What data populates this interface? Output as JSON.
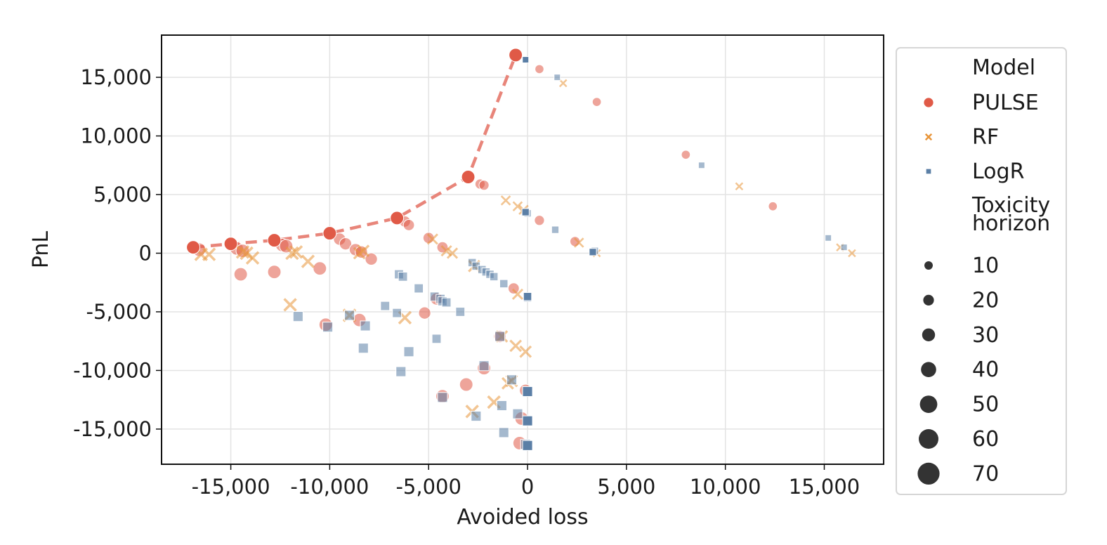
{
  "chart_data": {
    "type": "scatter",
    "xlabel": "Avoided loss",
    "ylabel": "PnL",
    "xlim": [
      -18500,
      18000
    ],
    "ylim": [
      -18000,
      18600
    ],
    "xticks": [
      -15000,
      -10000,
      -5000,
      0,
      5000,
      10000,
      15000
    ],
    "xtick_labels": [
      "-15,000",
      "-10,000",
      "-5,000",
      "0",
      "5,000",
      "10,000",
      "15,000"
    ],
    "yticks": [
      -15000,
      -10000,
      -5000,
      0,
      5000,
      10000,
      15000
    ],
    "ytick_labels": [
      "-15,000",
      "-10,000",
      "-5,000",
      "0",
      "5,000",
      "10,000",
      "15,000"
    ],
    "grid": true,
    "legend": {
      "placement": "outside-right",
      "model_title": "Model",
      "size_title": "Toxicity horizon",
      "size_title_lines": [
        "Toxicity",
        "horizon"
      ],
      "size_levels": [
        "10",
        "20",
        "30",
        "40",
        "50",
        "60",
        "70"
      ]
    },
    "colors": {
      "PULSE": "#e05a47",
      "RF": "#e8953a",
      "LogR": "#5b7fa6",
      "frontier": "#e8857a"
    },
    "series": [
      {
        "name": "PULSE",
        "marker": "circle",
        "frontier": [
          [
            -16900,
            500
          ],
          [
            -15000,
            800
          ],
          [
            -12800,
            1100
          ],
          [
            -10000,
            1700
          ],
          [
            -6600,
            3000
          ],
          [
            -3000,
            6500
          ],
          [
            -600,
            16900
          ]
        ],
        "points": [
          [
            -600,
            16900,
            70,
            1
          ],
          [
            600,
            15700,
            30,
            0.55
          ],
          [
            3500,
            12900,
            30,
            0.55
          ],
          [
            8000,
            8400,
            30,
            0.55
          ],
          [
            12400,
            4000,
            30,
            0.55
          ],
          [
            -3000,
            6500,
            70,
            1
          ],
          [
            -2400,
            5900,
            40,
            0.55
          ],
          [
            -2200,
            5800,
            40,
            0.55
          ],
          [
            600,
            2800,
            40,
            0.55
          ],
          [
            -6600,
            3000,
            70,
            1
          ],
          [
            -6200,
            2700,
            50,
            0.55
          ],
          [
            -6000,
            2400,
            50,
            0.55
          ],
          [
            -5000,
            1300,
            50,
            0.55
          ],
          [
            -4300,
            500,
            50,
            0.55
          ],
          [
            -10000,
            1700,
            70,
            1
          ],
          [
            -9500,
            1200,
            60,
            0.55
          ],
          [
            -9200,
            800,
            60,
            0.55
          ],
          [
            -8700,
            300,
            60,
            0.55
          ],
          [
            -8400,
            100,
            60,
            0.55
          ],
          [
            -7900,
            -500,
            60,
            0.55
          ],
          [
            -12800,
            1100,
            70,
            1
          ],
          [
            -12400,
            700,
            70,
            0.55
          ],
          [
            -12200,
            600,
            70,
            0.55
          ],
          [
            -15000,
            800,
            70,
            1
          ],
          [
            -14700,
            400,
            70,
            0.55
          ],
          [
            -14400,
            200,
            70,
            0.55
          ],
          [
            -16900,
            500,
            70,
            1
          ],
          [
            -16600,
            300,
            70,
            0.55
          ],
          [
            -10500,
            -1300,
            70,
            0.55
          ],
          [
            -12800,
            -1600,
            70,
            0.55
          ],
          [
            -14500,
            -1800,
            70,
            0.55
          ],
          [
            -10200,
            -6100,
            70,
            0.55
          ],
          [
            -8500,
            -5700,
            70,
            0.55
          ],
          [
            -5200,
            -5100,
            60,
            0.55
          ],
          [
            -4600,
            -3900,
            60,
            0.55
          ],
          [
            -700,
            -3000,
            50,
            0.55
          ],
          [
            -1400,
            -7100,
            60,
            0.55
          ],
          [
            -2200,
            -9800,
            70,
            0.55
          ],
          [
            -3100,
            -11200,
            70,
            0.55
          ],
          [
            -4300,
            -12200,
            70,
            0.55
          ],
          [
            -300,
            -14100,
            70,
            0.55
          ],
          [
            -400,
            -16200,
            70,
            0.55
          ],
          [
            2400,
            1000,
            40,
            0.55
          ],
          [
            -100,
            -11700,
            60,
            0.55
          ]
        ]
      },
      {
        "name": "RF",
        "marker": "x",
        "points": [
          [
            1800,
            14500,
            20,
            0.55
          ],
          [
            10700,
            5700,
            20,
            0.55
          ],
          [
            16400,
            0,
            20,
            0.55
          ],
          [
            15800,
            500,
            20,
            0.55
          ],
          [
            3500,
            0,
            20,
            0.55
          ],
          [
            -1100,
            4500,
            40,
            0.55
          ],
          [
            -500,
            4000,
            40,
            0.55
          ],
          [
            -200,
            3700,
            40,
            0.55
          ],
          [
            2600,
            900,
            40,
            0.55
          ],
          [
            -4800,
            1200,
            50,
            0.55
          ],
          [
            -4100,
            200,
            50,
            0.55
          ],
          [
            -3800,
            0,
            50,
            0.55
          ],
          [
            -8500,
            0,
            60,
            0.55
          ],
          [
            -8300,
            200,
            60,
            0.55
          ],
          [
            -11700,
            100,
            70,
            0.55
          ],
          [
            -11900,
            0,
            70,
            0.55
          ],
          [
            -14400,
            100,
            70,
            0.55
          ],
          [
            -14200,
            0,
            70,
            0.55
          ],
          [
            -13900,
            -400,
            70,
            0.55
          ],
          [
            -16500,
            -100,
            70,
            0.55
          ],
          [
            -16100,
            -100,
            70,
            0.55
          ],
          [
            -11100,
            -700,
            70,
            0.55
          ],
          [
            -12000,
            -4400,
            70,
            0.55
          ],
          [
            -9000,
            -5300,
            70,
            0.55
          ],
          [
            -6200,
            -5500,
            70,
            0.55
          ],
          [
            -2700,
            -1100,
            60,
            0.55
          ],
          [
            -500,
            -3500,
            50,
            0.55
          ],
          [
            -600,
            -7900,
            60,
            0.55
          ],
          [
            -100,
            -8400,
            60,
            0.55
          ],
          [
            -2800,
            -13500,
            70,
            0.55
          ],
          [
            -1700,
            -12700,
            70,
            0.55
          ],
          [
            -800,
            -10900,
            60,
            0.55
          ],
          [
            -1000,
            -11100,
            60,
            0.55
          ],
          [
            -1300,
            -7100,
            60,
            0.55
          ]
        ]
      },
      {
        "name": "LogR",
        "marker": "square",
        "points": [
          [
            -100,
            16500,
            20,
            1
          ],
          [
            1500,
            15000,
            20,
            0.55
          ],
          [
            8800,
            7500,
            20,
            0.55
          ],
          [
            15200,
            1300,
            20,
            0.55
          ],
          [
            16000,
            500,
            20,
            0.55
          ],
          [
            3300,
            100,
            30,
            1
          ],
          [
            3400,
            200,
            30,
            0.55
          ],
          [
            1400,
            2000,
            30,
            0.55
          ],
          [
            -100,
            3500,
            30,
            1
          ],
          [
            0,
            3400,
            30,
            0.55
          ],
          [
            -2800,
            -800,
            40,
            0.55
          ],
          [
            -2600,
            -1100,
            40,
            0.55
          ],
          [
            -2300,
            -1400,
            40,
            0.55
          ],
          [
            -2100,
            -1600,
            40,
            0.55
          ],
          [
            -1900,
            -1800,
            40,
            0.55
          ],
          [
            -1700,
            -2000,
            40,
            0.55
          ],
          [
            -1200,
            -2600,
            40,
            0.55
          ],
          [
            0,
            -3700,
            40,
            1
          ],
          [
            0,
            -3800,
            40,
            0.55
          ],
          [
            -6500,
            -1800,
            50,
            0.55
          ],
          [
            -6300,
            -2000,
            50,
            0.55
          ],
          [
            -5500,
            -3000,
            50,
            0.55
          ],
          [
            -4700,
            -3700,
            50,
            0.55
          ],
          [
            -4400,
            -3900,
            50,
            0.55
          ],
          [
            -4300,
            -4100,
            50,
            0.55
          ],
          [
            -4100,
            -4200,
            50,
            0.55
          ],
          [
            -3400,
            -5000,
            50,
            0.55
          ],
          [
            -7200,
            -4500,
            50,
            0.55
          ],
          [
            -6600,
            -5100,
            50,
            0.55
          ],
          [
            -4600,
            -7300,
            50,
            0.55
          ],
          [
            -8200,
            -6200,
            60,
            0.55
          ],
          [
            -8300,
            -8100,
            60,
            0.55
          ],
          [
            -6000,
            -8400,
            60,
            0.55
          ],
          [
            -6400,
            -10100,
            60,
            0.55
          ],
          [
            -11600,
            -5400,
            60,
            0.55
          ],
          [
            -10100,
            -6300,
            60,
            0.55
          ],
          [
            -9000,
            -5300,
            60,
            0.55
          ],
          [
            -4300,
            -12300,
            60,
            0.55
          ],
          [
            -2600,
            -13900,
            60,
            0.55
          ],
          [
            -2200,
            -9600,
            60,
            0.55
          ],
          [
            -1300,
            -13000,
            60,
            0.55
          ],
          [
            -1200,
            -15300,
            60,
            0.55
          ],
          [
            -800,
            -10800,
            60,
            0.55
          ],
          [
            -500,
            -13700,
            60,
            0.55
          ],
          [
            0,
            -11800,
            60,
            1
          ],
          [
            0,
            -14300,
            60,
            1
          ],
          [
            0,
            -16400,
            60,
            1
          ],
          [
            -100,
            -16300,
            60,
            0.55
          ],
          [
            -1400,
            -7100,
            60,
            0.55
          ]
        ]
      }
    ]
  }
}
